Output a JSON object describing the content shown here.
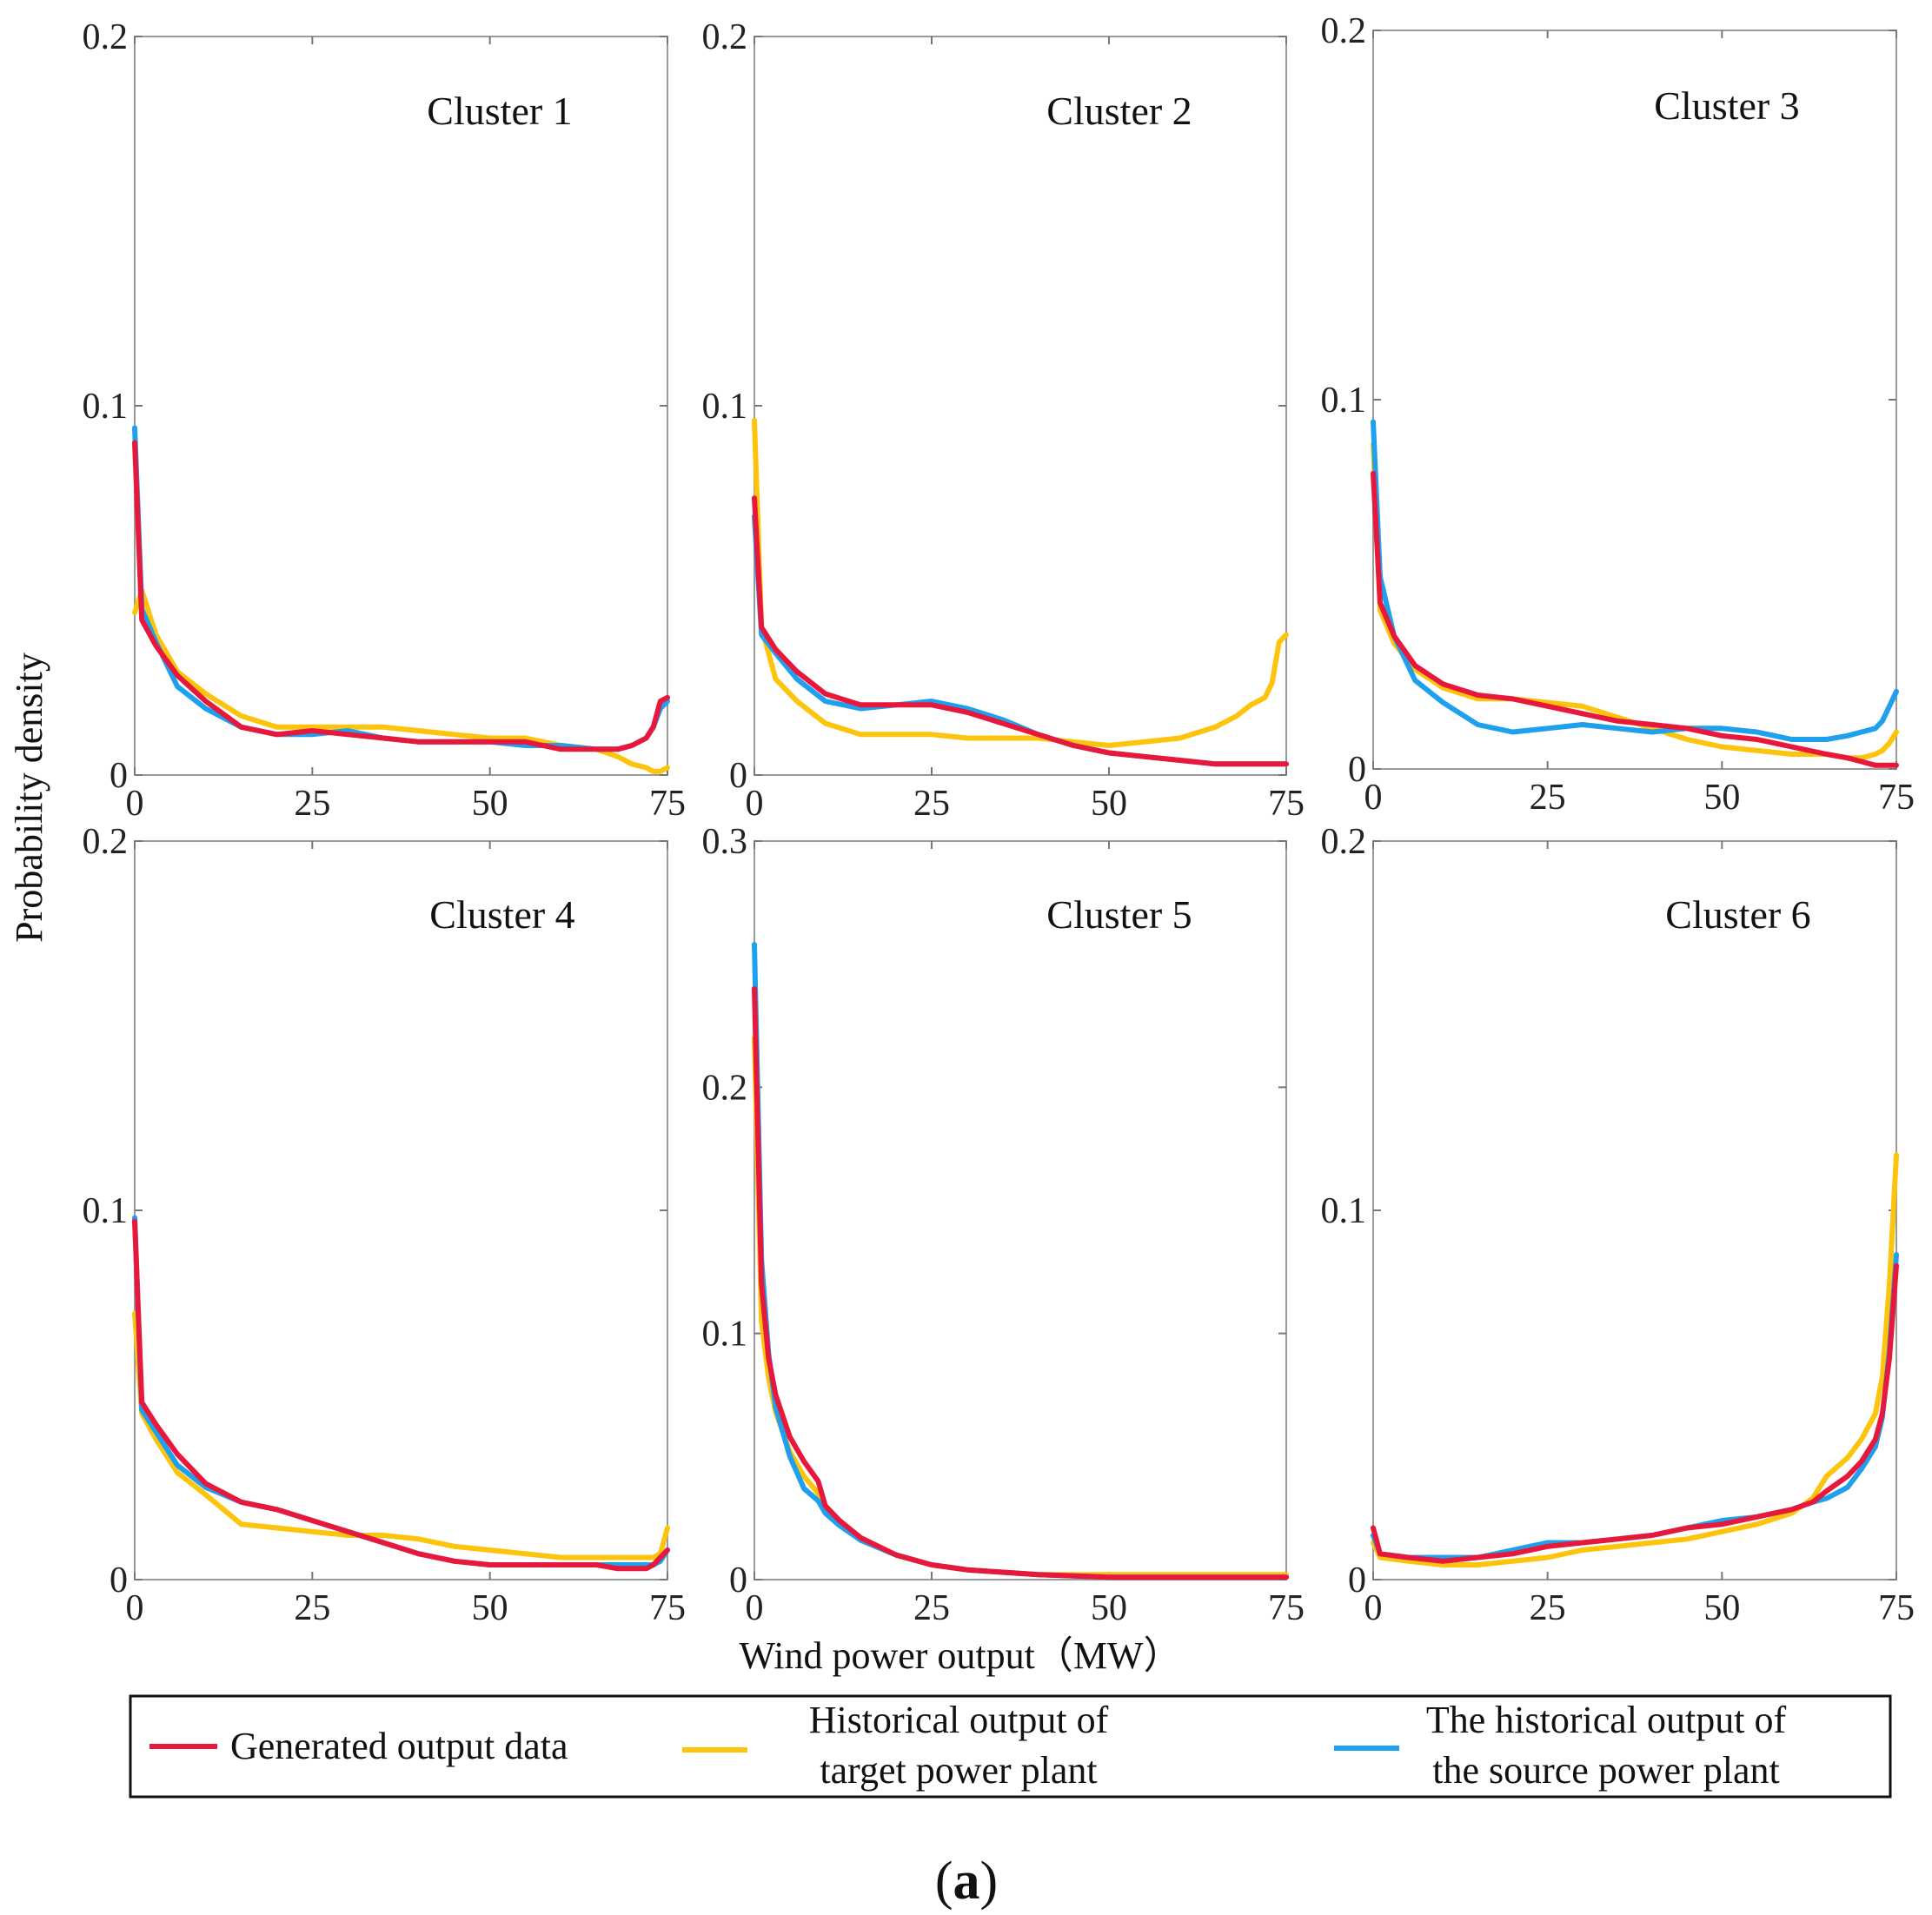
{
  "figure": {
    "ylabel": "Probability density",
    "xlabel": "Wind power output（MW）",
    "caption_open": "(",
    "caption_letter": "a",
    "caption_close": ")"
  },
  "legend": {
    "entries": [
      {
        "lines": [
          "Generated output data"
        ],
        "color": "#e8183c",
        "series": "generated"
      },
      {
        "lines": [
          "Historical output of",
          "target power plant"
        ],
        "color": "#fcc40c",
        "series": "target"
      },
      {
        "lines": [
          "The historical output of",
          "the source power plant"
        ],
        "color": "#1ea0ec",
        "series": "source"
      }
    ]
  },
  "chart_data": [
    {
      "type": "line",
      "title": "Cluster 1",
      "xlim": [
        0,
        75
      ],
      "ylim": [
        0,
        0.2
      ],
      "xticks": [
        0,
        25,
        50,
        75
      ],
      "xtick_labels": [
        "0",
        "25",
        "50",
        "75"
      ],
      "yticks": [
        0,
        0.1,
        0.2
      ],
      "ytick_labels": [
        "0",
        "0.1",
        "0.2"
      ],
      "x": [
        0,
        1,
        3,
        6,
        10,
        15,
        20,
        25,
        30,
        35,
        40,
        45,
        50,
        55,
        60,
        65,
        68,
        70,
        72,
        73,
        74,
        75
      ],
      "series": [
        {
          "name": "Generated output data",
          "color": "#e8183c",
          "values": [
            0.09,
            0.042,
            0.035,
            0.027,
            0.02,
            0.013,
            0.011,
            0.012,
            0.011,
            0.01,
            0.009,
            0.009,
            0.009,
            0.009,
            0.007,
            0.007,
            0.007,
            0.008,
            0.01,
            0.013,
            0.02,
            0.021
          ]
        },
        {
          "name": "Historical output of target power plant",
          "color": "#fcc40c",
          "values": [
            0.044,
            0.05,
            0.038,
            0.028,
            0.022,
            0.016,
            0.013,
            0.013,
            0.013,
            0.013,
            0.012,
            0.011,
            0.01,
            0.01,
            0.008,
            0.007,
            0.005,
            0.003,
            0.002,
            0.001,
            0.001,
            0.002
          ]
        },
        {
          "name": "The historical output of the source power plant",
          "color": "#1ea0ec",
          "values": [
            0.094,
            0.045,
            0.036,
            0.024,
            0.018,
            0.013,
            0.011,
            0.011,
            0.012,
            0.01,
            0.009,
            0.009,
            0.009,
            0.008,
            0.008,
            0.007,
            0.007,
            0.008,
            0.01,
            0.013,
            0.018,
            0.02
          ]
        }
      ]
    },
    {
      "type": "line",
      "title": "Cluster 2",
      "xlim": [
        0,
        75
      ],
      "ylim": [
        0,
        0.2
      ],
      "xticks": [
        0,
        25,
        50,
        75
      ],
      "xtick_labels": [
        "0",
        "25",
        "50",
        "75"
      ],
      "yticks": [
        0,
        0.1,
        0.2
      ],
      "ytick_labels": [
        "0",
        "0.1",
        "0.2"
      ],
      "x": [
        0,
        1,
        3,
        6,
        10,
        15,
        20,
        25,
        30,
        35,
        40,
        45,
        50,
        55,
        60,
        65,
        68,
        70,
        72,
        73,
        74,
        75
      ],
      "series": [
        {
          "name": "Generated output data",
          "color": "#e8183c",
          "values": [
            0.075,
            0.04,
            0.034,
            0.028,
            0.022,
            0.019,
            0.019,
            0.019,
            0.017,
            0.014,
            0.011,
            0.008,
            0.006,
            0.005,
            0.004,
            0.003,
            0.003,
            0.003,
            0.003,
            0.003,
            0.003,
            0.003
          ]
        },
        {
          "name": "Historical output of target power plant",
          "color": "#fcc40c",
          "values": [
            0.096,
            0.04,
            0.026,
            0.02,
            0.014,
            0.011,
            0.011,
            0.011,
            0.01,
            0.01,
            0.01,
            0.009,
            0.008,
            0.009,
            0.01,
            0.013,
            0.016,
            0.019,
            0.021,
            0.025,
            0.036,
            0.038
          ]
        },
        {
          "name": "The historical output of the source power plant",
          "color": "#1ea0ec",
          "values": [
            0.07,
            0.038,
            0.033,
            0.026,
            0.02,
            0.018,
            0.019,
            0.02,
            0.018,
            0.015,
            0.011,
            0.008,
            0.006,
            0.005,
            0.004,
            0.003,
            0.003,
            0.003,
            0.003,
            0.003,
            0.003,
            0.003
          ]
        }
      ]
    },
    {
      "type": "line",
      "title": "Cluster 3",
      "xlim": [
        0,
        75
      ],
      "ylim": [
        0,
        0.2
      ],
      "xticks": [
        0,
        25,
        50,
        75
      ],
      "xtick_labels": [
        "0",
        "25",
        "50",
        "75"
      ],
      "yticks": [
        0,
        0.1,
        0.2
      ],
      "ytick_labels": [
        "0",
        "0.1",
        "0.2"
      ],
      "x": [
        0,
        1,
        3,
        6,
        10,
        15,
        20,
        25,
        30,
        35,
        40,
        45,
        50,
        55,
        60,
        65,
        68,
        70,
        72,
        73,
        74,
        75
      ],
      "series": [
        {
          "name": "Generated output data",
          "color": "#e8183c",
          "values": [
            0.08,
            0.045,
            0.036,
            0.028,
            0.023,
            0.02,
            0.019,
            0.017,
            0.015,
            0.013,
            0.012,
            0.011,
            0.009,
            0.008,
            0.006,
            0.004,
            0.003,
            0.002,
            0.001,
            0.001,
            0.001,
            0.001
          ]
        },
        {
          "name": "Historical output of target power plant",
          "color": "#fcc40c",
          "values": [
            0.088,
            0.043,
            0.034,
            0.027,
            0.022,
            0.019,
            0.019,
            0.018,
            0.017,
            0.014,
            0.011,
            0.008,
            0.006,
            0.005,
            0.004,
            0.004,
            0.003,
            0.003,
            0.004,
            0.005,
            0.007,
            0.01
          ]
        },
        {
          "name": "The historical output of the source power plant",
          "color": "#1ea0ec",
          "values": [
            0.094,
            0.052,
            0.036,
            0.024,
            0.018,
            0.012,
            0.01,
            0.011,
            0.012,
            0.011,
            0.01,
            0.011,
            0.011,
            0.01,
            0.008,
            0.008,
            0.009,
            0.01,
            0.011,
            0.013,
            0.017,
            0.021
          ]
        }
      ]
    },
    {
      "type": "line",
      "title": "Cluster 4",
      "xlim": [
        0,
        75
      ],
      "ylim": [
        0,
        0.2
      ],
      "xticks": [
        0,
        25,
        50,
        75
      ],
      "xtick_labels": [
        "0",
        "25",
        "50",
        "75"
      ],
      "yticks": [
        0,
        0.1,
        0.2
      ],
      "ytick_labels": [
        "0",
        "0.1",
        "0.2"
      ],
      "x": [
        0,
        1,
        3,
        6,
        10,
        15,
        20,
        25,
        30,
        35,
        40,
        45,
        50,
        55,
        60,
        65,
        68,
        70,
        72,
        73,
        74,
        75
      ],
      "series": [
        {
          "name": "Generated output data",
          "color": "#e8183c",
          "values": [
            0.097,
            0.048,
            0.042,
            0.034,
            0.026,
            0.021,
            0.019,
            0.016,
            0.013,
            0.01,
            0.007,
            0.005,
            0.004,
            0.004,
            0.004,
            0.004,
            0.003,
            0.003,
            0.003,
            0.004,
            0.006,
            0.008
          ]
        },
        {
          "name": "Historical output of target power plant",
          "color": "#fcc40c",
          "values": [
            0.072,
            0.045,
            0.038,
            0.029,
            0.023,
            0.015,
            0.014,
            0.013,
            0.012,
            0.012,
            0.011,
            0.009,
            0.008,
            0.007,
            0.006,
            0.006,
            0.006,
            0.006,
            0.006,
            0.006,
            0.007,
            0.014
          ]
        },
        {
          "name": "The historical output of the source power plant",
          "color": "#1ea0ec",
          "values": [
            0.098,
            0.046,
            0.04,
            0.031,
            0.025,
            0.021,
            0.019,
            0.016,
            0.013,
            0.01,
            0.007,
            0.005,
            0.004,
            0.004,
            0.004,
            0.004,
            0.004,
            0.004,
            0.004,
            0.004,
            0.005,
            0.008
          ]
        }
      ]
    },
    {
      "type": "line",
      "title": "Cluster 5",
      "xlim": [
        0,
        75
      ],
      "ylim": [
        0,
        0.3
      ],
      "xticks": [
        0,
        25,
        50,
        75
      ],
      "xtick_labels": [
        "0",
        "25",
        "50",
        "75"
      ],
      "yticks": [
        0,
        0.1,
        0.2,
        0.3
      ],
      "ytick_labels": [
        "0",
        "0.1",
        "0.2",
        "0.3"
      ],
      "x": [
        0,
        1,
        2,
        3,
        5,
        7,
        9,
        10,
        12,
        15,
        20,
        25,
        30,
        35,
        40,
        50,
        60,
        70,
        75
      ],
      "series": [
        {
          "name": "Generated output data",
          "color": "#e8183c",
          "values": [
            0.24,
            0.12,
            0.09,
            0.075,
            0.058,
            0.048,
            0.04,
            0.03,
            0.024,
            0.017,
            0.01,
            0.006,
            0.004,
            0.003,
            0.002,
            0.001,
            0.001,
            0.001,
            0.001
          ]
        },
        {
          "name": "Historical output of target power plant",
          "color": "#fcc40c",
          "values": [
            0.22,
            0.105,
            0.082,
            0.068,
            0.052,
            0.042,
            0.035,
            0.028,
            0.023,
            0.016,
            0.01,
            0.006,
            0.004,
            0.003,
            0.002,
            0.002,
            0.002,
            0.002,
            0.002
          ]
        },
        {
          "name": "The historical output of the source power plant",
          "color": "#1ea0ec",
          "values": [
            0.258,
            0.13,
            0.092,
            0.07,
            0.05,
            0.037,
            0.032,
            0.027,
            0.022,
            0.016,
            0.01,
            0.006,
            0.004,
            0.003,
            0.002,
            0.001,
            0.001,
            0.001,
            0.001
          ]
        }
      ]
    },
    {
      "type": "line",
      "title": "Cluster 6",
      "xlim": [
        0,
        75
      ],
      "ylim": [
        0,
        0.2
      ],
      "xticks": [
        0,
        25,
        50,
        75
      ],
      "xtick_labels": [
        "0",
        "25",
        "50",
        "75"
      ],
      "yticks": [
        0,
        0.1,
        0.2
      ],
      "ytick_labels": [
        "0",
        "0.1",
        "0.2"
      ],
      "x": [
        0,
        1,
        5,
        10,
        15,
        20,
        25,
        30,
        35,
        40,
        45,
        50,
        55,
        60,
        63,
        65,
        68,
        70,
        72,
        73,
        74,
        75
      ],
      "series": [
        {
          "name": "Generated output data",
          "color": "#e8183c",
          "values": [
            0.014,
            0.007,
            0.006,
            0.005,
            0.006,
            0.007,
            0.009,
            0.01,
            0.011,
            0.012,
            0.014,
            0.015,
            0.017,
            0.019,
            0.021,
            0.024,
            0.028,
            0.032,
            0.038,
            0.045,
            0.06,
            0.085
          ]
        },
        {
          "name": "Historical output of target power plant",
          "color": "#fcc40c",
          "values": [
            0.01,
            0.006,
            0.005,
            0.004,
            0.004,
            0.005,
            0.006,
            0.008,
            0.009,
            0.01,
            0.011,
            0.013,
            0.015,
            0.018,
            0.022,
            0.028,
            0.033,
            0.038,
            0.045,
            0.055,
            0.08,
            0.115
          ]
        },
        {
          "name": "The historical output of the source power plant",
          "color": "#1ea0ec",
          "values": [
            0.012,
            0.007,
            0.006,
            0.006,
            0.006,
            0.008,
            0.01,
            0.01,
            0.011,
            0.012,
            0.014,
            0.016,
            0.017,
            0.019,
            0.021,
            0.022,
            0.025,
            0.03,
            0.036,
            0.044,
            0.062,
            0.088
          ]
        }
      ]
    }
  ]
}
